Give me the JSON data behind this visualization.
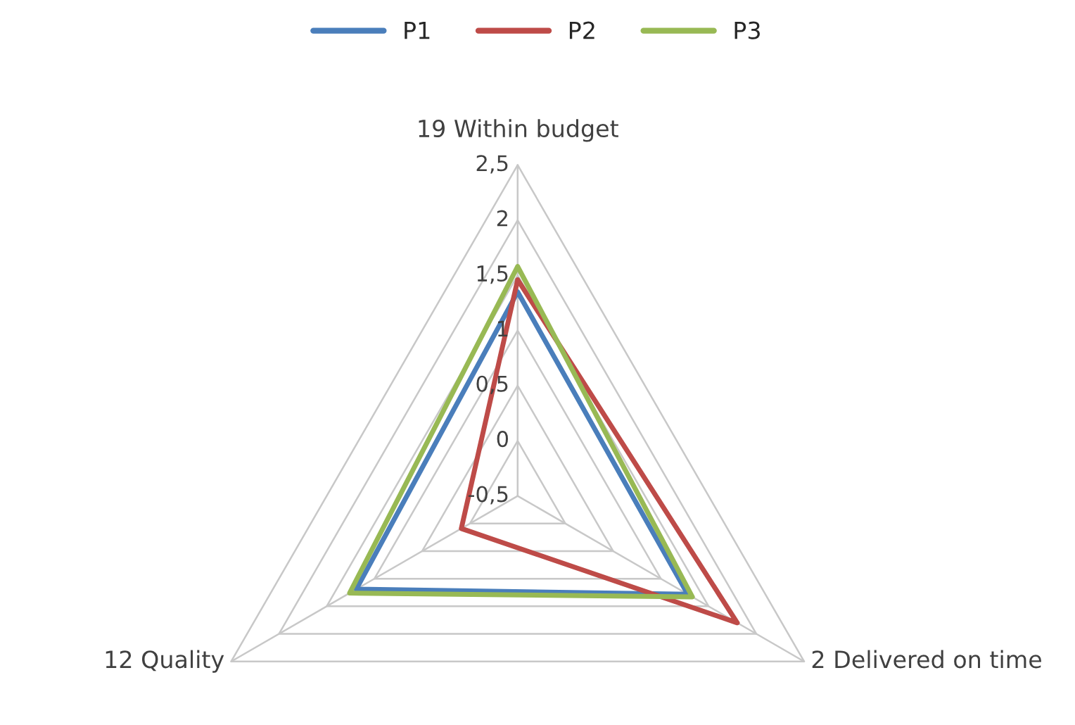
{
  "chart_data": {
    "type": "radar",
    "categories": [
      "19 Within budget",
      "2 Delivered on time",
      "12 Quality"
    ],
    "series": [
      {
        "name": "P1",
        "color": "#4a7ebb",
        "values": [
          1.35,
          1.28,
          1.19
        ]
      },
      {
        "name": "P2",
        "color": "#be4b48",
        "values": [
          1.46,
          1.8,
          0.09
        ]
      },
      {
        "name": "P3",
        "color": "#98b954",
        "values": [
          1.58,
          1.33,
          1.26
        ]
      }
    ],
    "ylim": [
      -0.5,
      2.5
    ],
    "yticks": [
      {
        "value": -0.5,
        "label": "-0,5"
      },
      0,
      {
        "value": 0.5,
        "label": "0,5"
      },
      1,
      {
        "value": 1.5,
        "label": "1,5"
      },
      2,
      {
        "value": 2.5,
        "label": "2,5"
      }
    ],
    "grid": true,
    "legend": "top"
  }
}
